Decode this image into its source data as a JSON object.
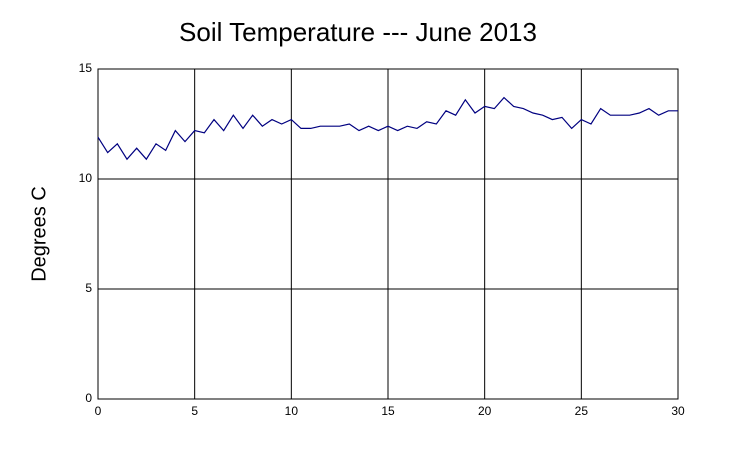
{
  "chart_data": {
    "type": "line",
    "title": "Soil Temperature --- June 2013",
    "y_label": "Degrees C",
    "x": [
      0,
      0.5,
      1,
      1.5,
      2,
      2.5,
      3,
      3.5,
      4,
      4.5,
      5,
      5.5,
      6,
      6.5,
      7,
      7.5,
      8,
      8.5,
      9,
      9.5,
      10,
      10.5,
      11,
      11.5,
      12,
      12.5,
      13,
      13.5,
      14,
      14.5,
      15,
      15.5,
      16,
      16.5,
      17,
      17.5,
      18,
      18.5,
      19,
      19.5,
      20,
      20.5,
      21,
      21.5,
      22,
      22.5,
      23,
      23.5,
      24,
      24.5,
      25,
      25.5,
      26,
      26.5,
      27,
      27.5,
      28,
      28.5,
      29,
      29.5,
      30
    ],
    "series": [
      {
        "color": "#000080",
        "values": [
          11.9,
          11.2,
          11.6,
          10.9,
          11.4,
          10.9,
          11.6,
          11.3,
          12.2,
          11.7,
          12.2,
          12.1,
          12.7,
          12.2,
          12.9,
          12.3,
          12.9,
          12.4,
          12.7,
          12.5,
          12.7,
          12.3,
          12.3,
          12.4,
          12.4,
          12.4,
          12.5,
          12.2,
          12.4,
          12.2,
          12.4,
          12.2,
          12.4,
          12.3,
          12.6,
          12.5,
          13.1,
          12.9,
          13.6,
          13.0,
          13.3,
          13.2,
          13.7,
          13.3,
          13.2,
          13.0,
          12.9,
          12.7,
          12.8,
          12.3,
          12.7,
          12.5,
          13.2,
          12.9,
          12.9,
          12.9,
          13.0,
          13.2,
          12.9,
          13.1,
          13.1
        ]
      }
    ],
    "xlim": [
      0,
      30
    ],
    "xticks": [
      0,
      5,
      10,
      15,
      20,
      25,
      30
    ],
    "ylim": [
      0,
      15
    ],
    "yticks": [
      0,
      5,
      10,
      15
    ],
    "grid": true
  }
}
